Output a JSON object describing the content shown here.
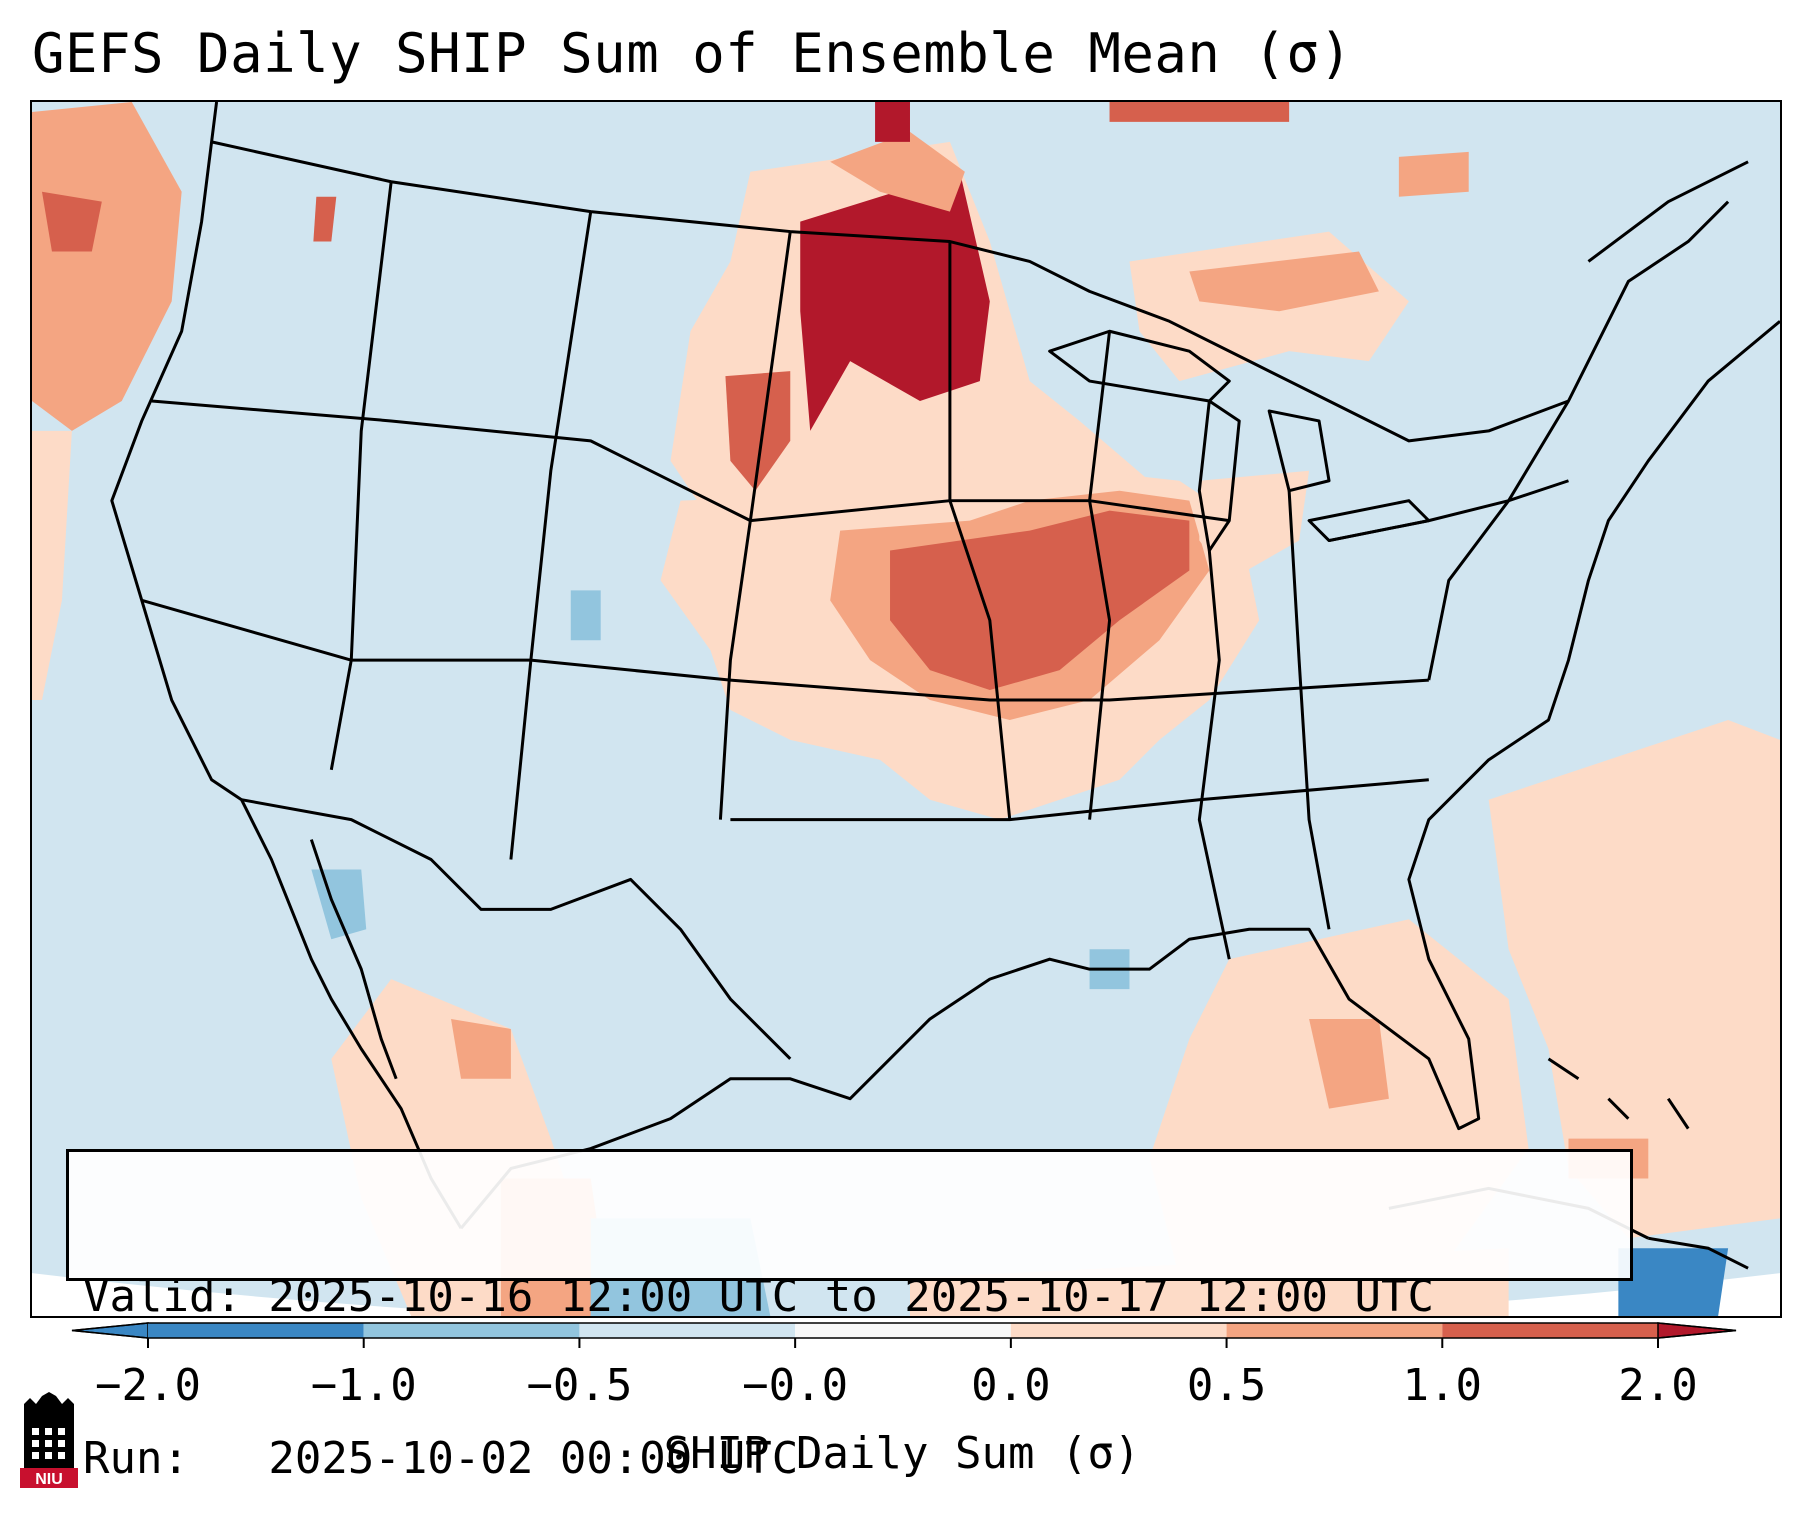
{
  "title": "GEFS Daily SHIP Sum of Ensemble Mean (σ)",
  "info": {
    "valid_line": "Valid: 2025-10-16 12:00 UTC to 2025-10-17 12:00 UTC",
    "run_line": "Run:   2025-10-02 00:00 UTC"
  },
  "colorbar": {
    "label": "SHIP Daily Sum (σ)",
    "ticks": [
      "−2.0",
      "−1.0",
      "−0.5",
      "−0.0",
      "0.0",
      "0.5",
      "1.0",
      "2.0"
    ],
    "bin_colors": [
      "#3a87c4",
      "#92c5de",
      "#d1e5f0",
      "#f7f7f7",
      "#fddbc7",
      "#f4a582",
      "#d6604d",
      "#b2182b"
    ]
  },
  "logo": {
    "text": "NIU",
    "color": "#c8102e"
  },
  "colors": {
    "neutral_fill": "#d1e5f0",
    "low_positive": "#fddbc7",
    "mid_positive": "#f4a582",
    "high_positive": "#d6604d",
    "extreme_positive": "#b2182b",
    "low_negative": "#92c5de",
    "mid_negative": "#3a87c4",
    "border_line": "#000000"
  }
}
